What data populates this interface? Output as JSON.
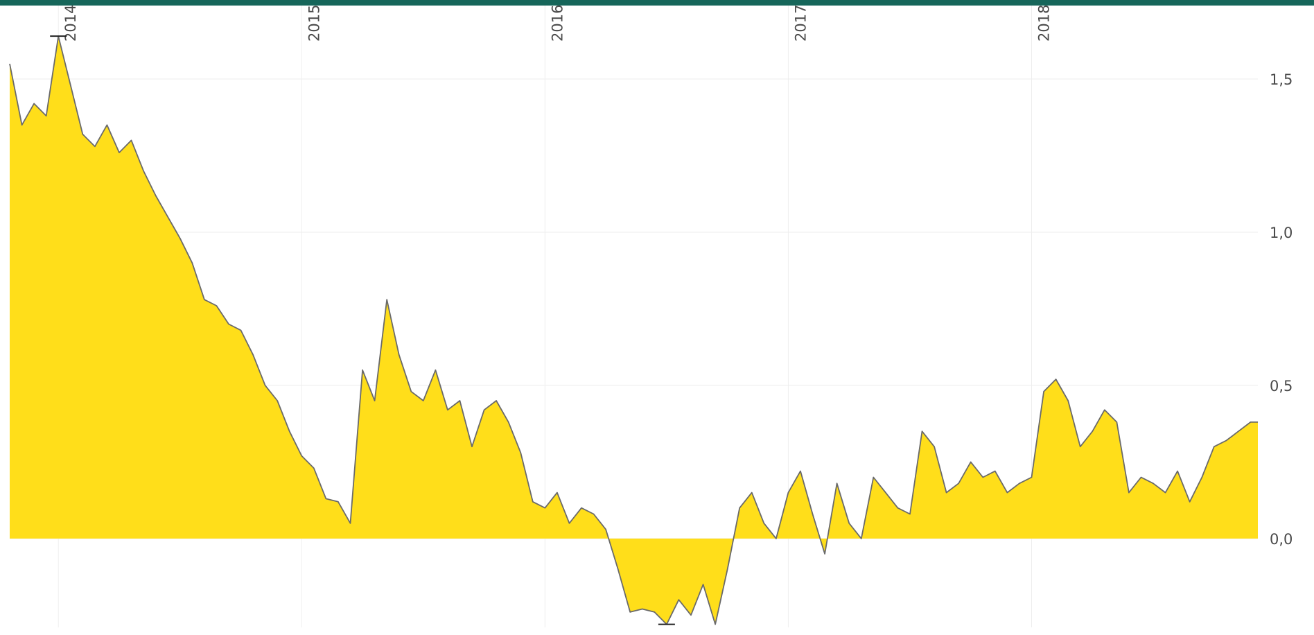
{
  "colors": {
    "top_bar": "#16665a",
    "fill": "#ffde1a",
    "line": "#6a6a6a",
    "grid": "#eeeeee",
    "text": "#4a4a4a"
  },
  "chart_data": {
    "type": "area",
    "title": "",
    "xlabel": "",
    "ylabel": "",
    "x_tick_labels": [
      "2014",
      "2015",
      "2016",
      "2017",
      "2018"
    ],
    "y_tick_labels": [
      "0,0",
      "0,5",
      "1,0",
      "1,5"
    ],
    "y_tick_values": [
      0,
      0.5,
      1.0,
      1.5
    ],
    "xlim": [
      2013.8,
      2018.93
    ],
    "ylim": [
      -0.29,
      1.74
    ],
    "grid": true,
    "x_axis_position": "top",
    "y_axis_position": "right",
    "markers": [
      {
        "label": "max",
        "x": 2014.0,
        "y": 1.64
      },
      {
        "label": "min",
        "x": 2016.5,
        "y": -0.28
      }
    ],
    "x": [
      2013.8,
      2013.85,
      2013.9,
      2013.95,
      2014.0,
      2014.05,
      2014.1,
      2014.15,
      2014.2,
      2014.25,
      2014.3,
      2014.35,
      2014.4,
      2014.45,
      2014.5,
      2014.55,
      2014.6,
      2014.65,
      2014.7,
      2014.75,
      2014.8,
      2014.85,
      2014.9,
      2014.95,
      2015.0,
      2015.05,
      2015.1,
      2015.15,
      2015.2,
      2015.25,
      2015.3,
      2015.35,
      2015.4,
      2015.45,
      2015.5,
      2015.55,
      2015.6,
      2015.65,
      2015.7,
      2015.75,
      2015.8,
      2015.85,
      2015.9,
      2015.95,
      2016.0,
      2016.05,
      2016.1,
      2016.15,
      2016.2,
      2016.25,
      2016.3,
      2016.35,
      2016.4,
      2016.45,
      2016.5,
      2016.55,
      2016.6,
      2016.65,
      2016.7,
      2016.75,
      2016.8,
      2016.85,
      2016.9,
      2016.95,
      2017.0,
      2017.05,
      2017.1,
      2017.15,
      2017.2,
      2017.25,
      2017.3,
      2017.35,
      2017.4,
      2017.45,
      2017.5,
      2017.55,
      2017.6,
      2017.65,
      2017.7,
      2017.75,
      2017.8,
      2017.85,
      2017.9,
      2017.95,
      2018.0,
      2018.05,
      2018.1,
      2018.15,
      2018.2,
      2018.25,
      2018.3,
      2018.35,
      2018.4,
      2018.45,
      2018.5,
      2018.55,
      2018.6,
      2018.65,
      2018.7,
      2018.75,
      2018.8,
      2018.85,
      2018.9,
      2018.93
    ],
    "values": [
      1.55,
      1.35,
      1.42,
      1.38,
      1.64,
      1.48,
      1.32,
      1.28,
      1.35,
      1.26,
      1.3,
      1.2,
      1.12,
      1.05,
      0.98,
      0.9,
      0.78,
      0.76,
      0.7,
      0.68,
      0.6,
      0.5,
      0.45,
      0.35,
      0.27,
      0.23,
      0.13,
      0.12,
      0.05,
      0.55,
      0.45,
      0.78,
      0.6,
      0.48,
      0.45,
      0.55,
      0.42,
      0.45,
      0.3,
      0.42,
      0.45,
      0.38,
      0.28,
      0.12,
      0.1,
      0.15,
      0.05,
      0.1,
      0.08,
      0.03,
      -0.1,
      -0.24,
      -0.23,
      -0.24,
      -0.28,
      -0.2,
      -0.25,
      -0.15,
      -0.28,
      -0.1,
      0.1,
      0.15,
      0.05,
      0.0,
      0.15,
      0.22,
      0.08,
      -0.05,
      0.18,
      0.05,
      0.0,
      0.2,
      0.15,
      0.1,
      0.08,
      0.35,
      0.3,
      0.15,
      0.18,
      0.25,
      0.2,
      0.22,
      0.15,
      0.18,
      0.2,
      0.48,
      0.52,
      0.45,
      0.3,
      0.35,
      0.42,
      0.38,
      0.15,
      0.2,
      0.18,
      0.15,
      0.22,
      0.12,
      0.2,
      0.3,
      0.32,
      0.35,
      0.38,
      0.38
    ]
  }
}
